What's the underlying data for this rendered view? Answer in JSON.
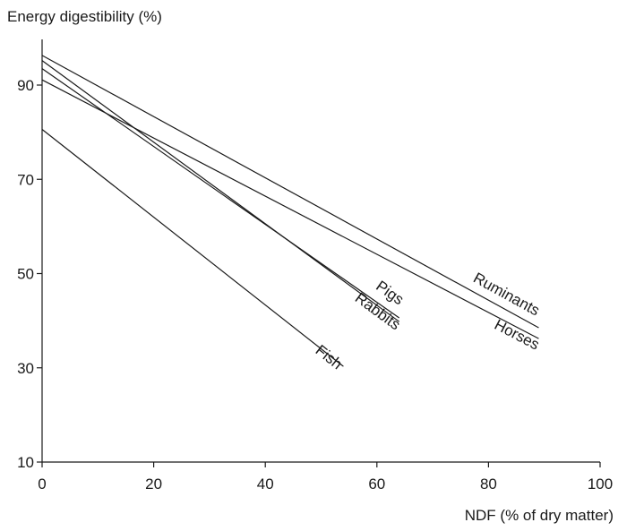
{
  "chart_data": {
    "type": "line",
    "ylabel": "Energy digestibility (%)",
    "xlabel": "NDF (% of dry matter)",
    "xlim": [
      0,
      100
    ],
    "ylim": [
      10,
      100
    ],
    "xticks": [
      0,
      20,
      40,
      60,
      80,
      100
    ],
    "yticks": [
      10,
      30,
      50,
      70,
      90
    ],
    "grid": false,
    "legend": "none (series labelled directly on lines)",
    "series": [
      {
        "name": "Ruminants",
        "x": [
          0,
          89
        ],
        "y": [
          96.3,
          38.5
        ]
      },
      {
        "name": "Horses",
        "x": [
          0,
          89
        ],
        "y": [
          91.1,
          36.2
        ]
      },
      {
        "name": "Pigs",
        "x": [
          0,
          64
        ],
        "y": [
          93.5,
          40.6
        ]
      },
      {
        "name": "Rabbits",
        "x": [
          0,
          64
        ],
        "y": [
          95.2,
          39.8
        ]
      },
      {
        "name": "Fish",
        "x": [
          0,
          54
        ],
        "y": [
          80.6,
          30.3
        ]
      }
    ]
  }
}
